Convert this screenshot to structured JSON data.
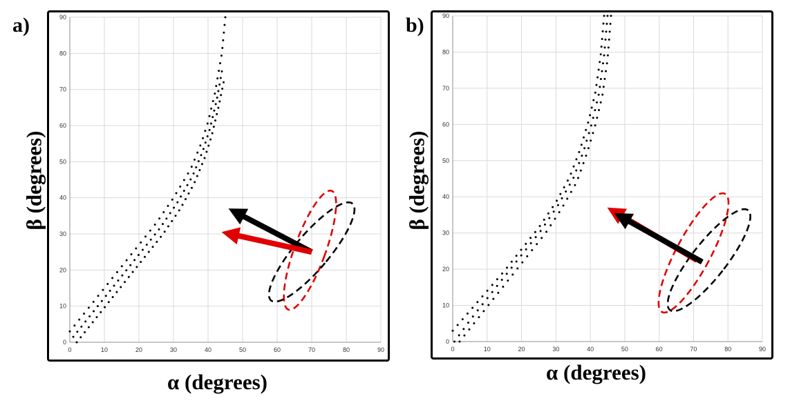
{
  "chart_data": [
    {
      "type": "scatter",
      "panel_label": "a)",
      "xlabel": "α (degrees)",
      "ylabel": "β (degrees)",
      "xlim": [
        0,
        90
      ],
      "ylim": [
        0,
        90
      ],
      "xticks": [
        0,
        10,
        20,
        30,
        40,
        50,
        60,
        70,
        80,
        90
      ],
      "yticks": [
        0,
        10,
        20,
        30,
        40,
        50,
        60,
        70,
        80,
        90
      ],
      "grid": true,
      "series": [
        {
          "color": "#000000",
          "style": "dotted",
          "points": [
            [
              0,
              3
            ],
            [
              5,
              9
            ],
            [
              10,
              15
            ],
            [
              15,
              21
            ],
            [
              20,
              27
            ],
            [
              25,
              33
            ],
            [
              30,
              40
            ],
            [
              35,
              48
            ],
            [
              38,
              55
            ],
            [
              40,
              61
            ],
            [
              42,
              69
            ],
            [
              44,
              80
            ],
            [
              45,
              90
            ]
          ]
        },
        {
          "color": "#000000",
          "style": "dotted",
          "points": [
            [
              1,
              1.5
            ],
            [
              6,
              7.5
            ],
            [
              11,
              13.5
            ],
            [
              16,
              19.5
            ],
            [
              21,
              25.5
            ],
            [
              26,
              31.5
            ],
            [
              31,
              38.5
            ],
            [
              35.5,
              46
            ],
            [
              38.5,
              53
            ],
            [
              40.5,
              59
            ],
            [
              42.5,
              67
            ],
            [
              44,
              75
            ]
          ]
        },
        {
          "color": "#000000",
          "style": "dotted",
          "points": [
            [
              2,
              0
            ],
            [
              7,
              6
            ],
            [
              12,
              12
            ],
            [
              17,
              18
            ],
            [
              22,
              24
            ],
            [
              27,
              30
            ],
            [
              32,
              37
            ],
            [
              36,
              44
            ],
            [
              39,
              51
            ],
            [
              41,
              57
            ],
            [
              43,
              65
            ],
            [
              44.5,
              72
            ]
          ]
        }
      ],
      "ellipses": [
        {
          "color": "#e00000",
          "style": "dashed",
          "cx": 69.5,
          "cy": 25.5,
          "rx": 4.5,
          "ry": 17.5,
          "angle_deg": -20
        },
        {
          "color": "#000000",
          "style": "dashed",
          "cx": 70,
          "cy": 25,
          "rx": 5,
          "ry": 17.5,
          "angle_deg": -40
        }
      ],
      "arrows": [
        {
          "color": "#000000",
          "from": [
            70,
            25
          ],
          "to": [
            46,
            37
          ]
        },
        {
          "color": "#e00000",
          "from": [
            70,
            25
          ],
          "to": [
            44,
            30.5
          ]
        }
      ]
    },
    {
      "type": "scatter",
      "panel_label": "b)",
      "xlabel": "α (degrees)",
      "ylabel": "β (degrees)",
      "xlim": [
        0,
        90
      ],
      "ylim": [
        0,
        90
      ],
      "xticks": [
        0,
        10,
        20,
        30,
        40,
        50,
        60,
        70,
        80,
        90
      ],
      "yticks": [
        0,
        10,
        20,
        30,
        40,
        50,
        60,
        70,
        80,
        90
      ],
      "grid": true,
      "series": [
        {
          "color": "#000000",
          "style": "dotted",
          "points": [
            [
              0,
              3
            ],
            [
              5,
              8.5
            ],
            [
              10,
              14
            ],
            [
              15,
              19.5
            ],
            [
              20,
              25.5
            ],
            [
              25,
              31.5
            ],
            [
              30,
              38.5
            ],
            [
              34,
              45.5
            ],
            [
              37,
              53
            ],
            [
              39.5,
              61
            ],
            [
              41.5,
              69
            ],
            [
              43,
              79
            ],
            [
              44,
              90
            ]
          ]
        },
        {
          "color": "#000000",
          "style": "dotted",
          "points": [
            [
              0.5,
              0
            ],
            [
              5.5,
              6.5
            ],
            [
              10.5,
              12.5
            ],
            [
              15.5,
              18.5
            ],
            [
              20.5,
              24.5
            ],
            [
              25.5,
              30.5
            ],
            [
              30.5,
              37.5
            ],
            [
              35,
              45
            ],
            [
              38,
              52.5
            ],
            [
              40.5,
              60.5
            ],
            [
              42.5,
              68.5
            ],
            [
              44,
              79
            ],
            [
              45,
              90
            ]
          ]
        },
        {
          "color": "#000000",
          "style": "dotted",
          "points": [
            [
              2,
              0
            ],
            [
              7,
              6
            ],
            [
              12,
              12
            ],
            [
              17,
              18
            ],
            [
              22,
              24
            ],
            [
              27,
              30
            ],
            [
              31.5,
              36.5
            ],
            [
              36,
              44
            ],
            [
              39,
              52
            ],
            [
              41.5,
              60
            ],
            [
              43.5,
              68
            ],
            [
              45,
              78
            ],
            [
              46,
              90
            ]
          ]
        }
      ],
      "ellipses": [
        {
          "color": "#e00000",
          "style": "dashed",
          "cx": 70,
          "cy": 24.5,
          "rx": 5,
          "ry": 18.5,
          "angle_deg": -28
        },
        {
          "color": "#000000",
          "style": "dashed",
          "cx": 74.5,
          "cy": 22.5,
          "rx": 5,
          "ry": 17.5,
          "angle_deg": -38
        }
      ],
      "arrows": [
        {
          "color": "#e00000",
          "from": [
            71,
            22.5
          ],
          "to": [
            45,
            37
          ]
        },
        {
          "color": "#000000",
          "from": [
            72.5,
            22
          ],
          "to": [
            47,
            35.5
          ]
        }
      ]
    }
  ]
}
